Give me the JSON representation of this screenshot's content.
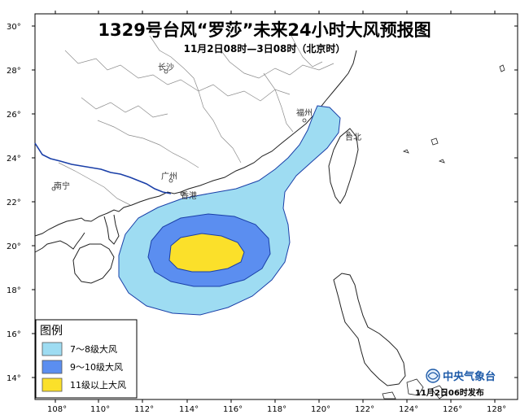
{
  "title": "1329号台风“罗莎”未来24小时大风预报图",
  "subtitle": "11月2日08时—3日08时（北京时）",
  "axes": {
    "lat_labels": [
      "30°",
      "28°",
      "26°",
      "24°",
      "22°",
      "20°",
      "18°",
      "16°",
      "14°"
    ],
    "lon_labels": [
      "108°",
      "110°",
      "112°",
      "114°",
      "116°",
      "118°",
      "120°",
      "122°",
      "124°",
      "126°",
      "128°"
    ]
  },
  "cities": {
    "changsha": "长沙",
    "nanning": "南宁",
    "guangzhou": "广州",
    "hongkong": "香港",
    "fuzhou": "福州",
    "taibei": "台北"
  },
  "legend": {
    "title": "图例",
    "items": [
      {
        "label": "7～8级大风",
        "color": "#9edcf2"
      },
      {
        "label": "9～10级大风",
        "color": "#5b8ef0"
      },
      {
        "label": "11级以上大风",
        "color": "#fbe02a"
      }
    ]
  },
  "agency": "中央气象台",
  "issued": "11月2日06时发布",
  "colors": {
    "gale_7_8": "#9edcf2",
    "gale_9_10": "#5b8ef0",
    "gale_11_plus": "#fbe02a",
    "border": "#1a3fa8"
  }
}
